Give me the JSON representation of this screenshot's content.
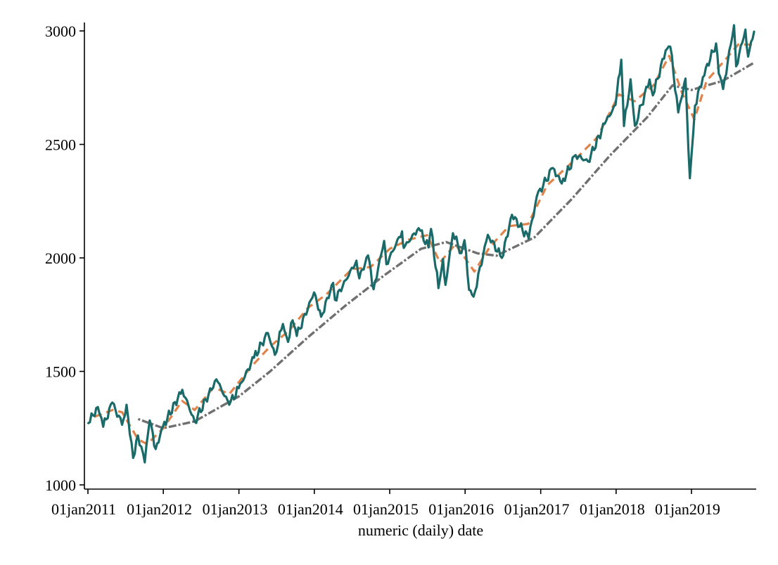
{
  "chart_data": {
    "type": "line",
    "title": "",
    "xlabel": "numeric (daily) date",
    "ylabel": "",
    "ylim": [
      1000,
      3000
    ],
    "xlim": [
      "2011-01-01",
      "2019-10-31"
    ],
    "grid": false,
    "legend": "none",
    "yticks": [
      {
        "value": 1000,
        "label": "1000"
      },
      {
        "value": 1500,
        "label": "1500"
      },
      {
        "value": 2000,
        "label": "2000"
      },
      {
        "value": 2500,
        "label": "2500"
      },
      {
        "value": 3000,
        "label": "3000"
      }
    ],
    "xticks": [
      {
        "value": "2011-01-01",
        "label": "01jan2011"
      },
      {
        "value": "2012-01-01",
        "label": "01jan2012"
      },
      {
        "value": "2013-01-01",
        "label": "01jan2013"
      },
      {
        "value": "2014-01-01",
        "label": "01jan2014"
      },
      {
        "value": "2015-01-01",
        "label": "01jan2015"
      },
      {
        "value": "2016-01-01",
        "label": "01jan2016"
      },
      {
        "value": "2017-01-01",
        "label": "01jan2017"
      },
      {
        "value": "2018-01-01",
        "label": "01jan2018"
      },
      {
        "value": "2019-01-01",
        "label": "01jan2019"
      }
    ],
    "series": [
      {
        "style": "solid",
        "color": "#1b6a6a",
        "points": [
          [
            "2011-01-03",
            1272
          ],
          [
            "2011-02-18",
            1343
          ],
          [
            "2011-03-16",
            1256
          ],
          [
            "2011-04-29",
            1363
          ],
          [
            "2011-06-15",
            1265
          ],
          [
            "2011-07-07",
            1353
          ],
          [
            "2011-08-08",
            1119
          ],
          [
            "2011-08-31",
            1218
          ],
          [
            "2011-10-03",
            1099
          ],
          [
            "2011-10-27",
            1284
          ],
          [
            "2011-11-25",
            1158
          ],
          [
            "2011-12-30",
            1257
          ],
          [
            "2012-04-02",
            1419
          ],
          [
            "2012-06-01",
            1278
          ],
          [
            "2012-09-14",
            1465
          ],
          [
            "2012-11-15",
            1353
          ],
          [
            "2012-12-31",
            1426
          ],
          [
            "2013-03-15",
            1560
          ],
          [
            "2013-05-21",
            1669
          ],
          [
            "2013-06-24",
            1573
          ],
          [
            "2013-08-02",
            1709
          ],
          [
            "2013-08-27",
            1630
          ],
          [
            "2013-09-18",
            1725
          ],
          [
            "2013-10-08",
            1656
          ],
          [
            "2013-12-31",
            1848
          ],
          [
            "2014-02-03",
            1741
          ],
          [
            "2014-04-02",
            1890
          ],
          [
            "2014-04-11",
            1815
          ],
          [
            "2014-07-24",
            1988
          ],
          [
            "2014-08-07",
            1910
          ],
          [
            "2014-09-18",
            2011
          ],
          [
            "2014-10-15",
            1862
          ],
          [
            "2014-12-05",
            2075
          ],
          [
            "2014-12-16",
            1972
          ],
          [
            "2015-03-02",
            2117
          ],
          [
            "2015-03-10",
            2044
          ],
          [
            "2015-05-21",
            2131
          ],
          [
            "2015-07-08",
            2046
          ],
          [
            "2015-07-20",
            2128
          ],
          [
            "2015-08-25",
            1867
          ],
          [
            "2015-09-16",
            1995
          ],
          [
            "2015-09-28",
            1881
          ],
          [
            "2015-11-03",
            2109
          ],
          [
            "2015-12-14",
            2021
          ],
          [
            "2015-12-29",
            2078
          ],
          [
            "2016-01-20",
            1859
          ],
          [
            "2016-02-11",
            1829
          ],
          [
            "2016-04-20",
            2102
          ],
          [
            "2016-06-27",
            2000
          ],
          [
            "2016-08-15",
            2190
          ],
          [
            "2016-11-04",
            2085
          ],
          [
            "2016-12-13",
            2271
          ],
          [
            "2017-03-01",
            2396
          ],
          [
            "2017-04-13",
            2328
          ],
          [
            "2017-06-19",
            2453
          ],
          [
            "2017-08-18",
            2425
          ],
          [
            "2017-11-07",
            2591
          ],
          [
            "2017-12-29",
            2674
          ],
          [
            "2018-01-26",
            2873
          ],
          [
            "2018-02-08",
            2581
          ],
          [
            "2018-03-12",
            2787
          ],
          [
            "2018-04-02",
            2582
          ],
          [
            "2018-06-12",
            2786
          ],
          [
            "2018-06-28",
            2716
          ],
          [
            "2018-08-29",
            2914
          ],
          [
            "2018-09-20",
            2931
          ],
          [
            "2018-10-29",
            2641
          ],
          [
            "2018-12-03",
            2790
          ],
          [
            "2018-12-24",
            2351
          ],
          [
            "2019-01-18",
            2670
          ],
          [
            "2019-02-25",
            2796
          ],
          [
            "2019-04-30",
            2945
          ],
          [
            "2019-05-13",
            2812
          ],
          [
            "2019-06-03",
            2744
          ],
          [
            "2019-07-26",
            3025
          ],
          [
            "2019-08-05",
            2844
          ],
          [
            "2019-09-19",
            3006
          ],
          [
            "2019-10-02",
            2887
          ],
          [
            "2019-10-31",
            2997
          ]
        ]
      },
      {
        "style": "dash",
        "color": "#e0834a",
        "points": [
          [
            "2011-02-01",
            1300
          ],
          [
            "2011-05-01",
            1330
          ],
          [
            "2011-06-15",
            1320
          ],
          [
            "2011-09-01",
            1200
          ],
          [
            "2011-10-15",
            1180
          ],
          [
            "2012-01-01",
            1250
          ],
          [
            "2012-04-01",
            1370
          ],
          [
            "2012-06-01",
            1330
          ],
          [
            "2012-09-01",
            1430
          ],
          [
            "2012-11-15",
            1400
          ],
          [
            "2013-03-01",
            1520
          ],
          [
            "2013-06-01",
            1610
          ],
          [
            "2013-09-01",
            1680
          ],
          [
            "2013-12-01",
            1780
          ],
          [
            "2014-03-01",
            1840
          ],
          [
            "2014-07-01",
            1950
          ],
          [
            "2014-10-01",
            1960
          ],
          [
            "2015-01-01",
            2040
          ],
          [
            "2015-04-01",
            2080
          ],
          [
            "2015-07-01",
            2100
          ],
          [
            "2015-09-01",
            1980
          ],
          [
            "2015-11-15",
            2060
          ],
          [
            "2016-02-15",
            1940
          ],
          [
            "2016-05-01",
            2050
          ],
          [
            "2016-08-01",
            2140
          ],
          [
            "2016-11-01",
            2150
          ],
          [
            "2017-02-01",
            2320
          ],
          [
            "2017-06-01",
            2420
          ],
          [
            "2017-10-01",
            2530
          ],
          [
            "2018-01-15",
            2720
          ],
          [
            "2018-04-01",
            2690
          ],
          [
            "2018-07-01",
            2760
          ],
          [
            "2018-09-15",
            2890
          ],
          [
            "2018-11-15",
            2730
          ],
          [
            "2019-01-15",
            2610
          ],
          [
            "2019-03-15",
            2780
          ],
          [
            "2019-06-01",
            2860
          ],
          [
            "2019-08-15",
            2940
          ],
          [
            "2019-10-31",
            2940
          ]
        ]
      },
      {
        "style": "dashdot",
        "color": "#707070",
        "points": [
          [
            "2011-09-01",
            1290
          ],
          [
            "2012-01-01",
            1250
          ],
          [
            "2012-06-01",
            1280
          ],
          [
            "2013-01-01",
            1390
          ],
          [
            "2013-06-01",
            1500
          ],
          [
            "2013-12-01",
            1650
          ],
          [
            "2014-06-01",
            1790
          ],
          [
            "2014-12-01",
            1920
          ],
          [
            "2015-06-01",
            2040
          ],
          [
            "2015-10-01",
            2070
          ],
          [
            "2016-03-01",
            2020
          ],
          [
            "2016-06-01",
            2010
          ],
          [
            "2016-12-01",
            2090
          ],
          [
            "2017-06-01",
            2260
          ],
          [
            "2017-12-01",
            2450
          ],
          [
            "2018-06-01",
            2620
          ],
          [
            "2018-10-01",
            2760
          ],
          [
            "2019-01-01",
            2740
          ],
          [
            "2019-06-01",
            2780
          ],
          [
            "2019-10-31",
            2860
          ]
        ]
      }
    ]
  }
}
